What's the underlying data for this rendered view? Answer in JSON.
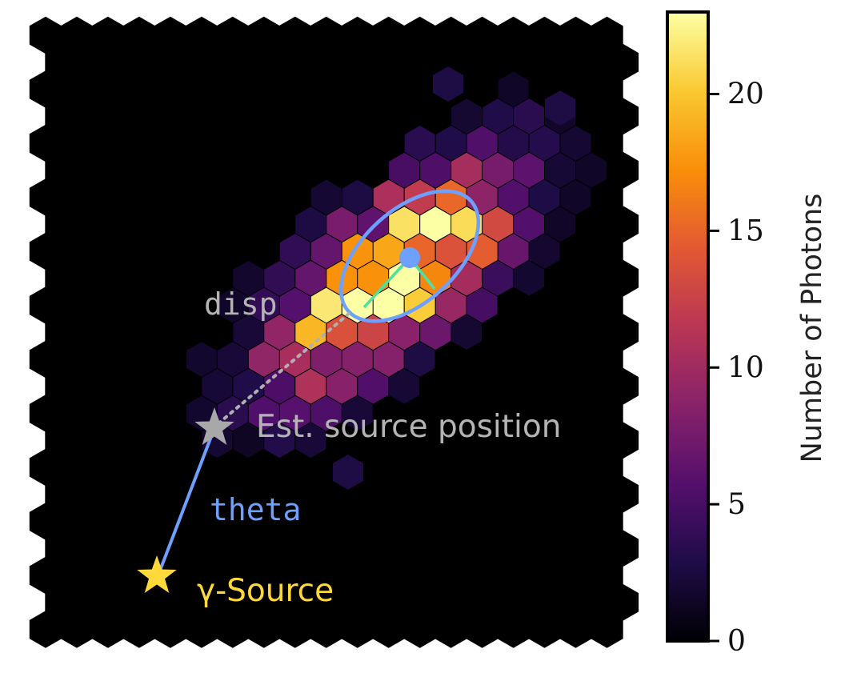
{
  "annotations": {
    "disp_label": "disp",
    "est_source_label": "Est. source position",
    "theta_label": "theta",
    "gamma_source_label": "γ-Source"
  },
  "colorbar": {
    "label": "Number of Photons",
    "ticks": [
      {
        "value": 0,
        "label": "0"
      },
      {
        "value": 5,
        "label": "5"
      },
      {
        "value": 10,
        "label": "10"
      },
      {
        "value": 15,
        "label": "15"
      },
      {
        "value": 20,
        "label": "20"
      }
    ],
    "min": 0,
    "max": 23,
    "colormap": "inferno",
    "colormap_stops": [
      "#000004",
      "#1f0c48",
      "#550f6d",
      "#88226a",
      "#ba3655",
      "#e35933",
      "#f98e09",
      "#f9c932",
      "#fcffa4"
    ]
  },
  "colors": {
    "background": "#000000",
    "ellipse": "#6ea0ff",
    "axis_lines": "#4ee0a0",
    "theta_line": "#6ea0ff",
    "disp_dots": "#b0b0b0",
    "est_star": "#a8a8a8",
    "gamma_star": "#ffd93a",
    "est_label": "#b4b4b4",
    "theta_label": "#6ea0ff",
    "gamma_label": "#ffd93a",
    "disp_label": "#b4b4b4"
  }
}
